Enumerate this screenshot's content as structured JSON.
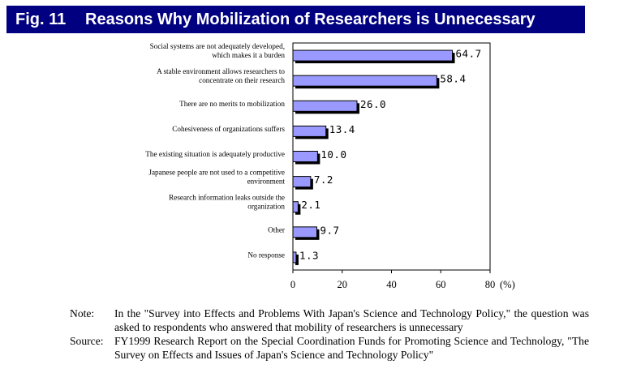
{
  "figure": {
    "number": "Fig. 11",
    "title": "Reasons Why Mobilization of Researchers is Unnecessary"
  },
  "chart_data": {
    "type": "bar",
    "orientation": "horizontal",
    "categories": [
      [
        "Social systems are not adequately developed,",
        "which makes it a burden"
      ],
      [
        "A stable environment allows researchers to",
        "concentrate on their research"
      ],
      [
        "There are no merits to mobilization"
      ],
      [
        "Cohesiveness of organizations suffers"
      ],
      [
        "The existing situation is adequately productive"
      ],
      [
        "Japanese people are not used to a competitive",
        "environment"
      ],
      [
        "Research information leaks outside the",
        "organization"
      ],
      [
        "Other"
      ],
      [
        "No response"
      ]
    ],
    "values": [
      64.7,
      58.4,
      26.0,
      13.4,
      10.0,
      7.2,
      2.1,
      9.7,
      1.3
    ],
    "value_labels": [
      "64.7",
      "58.4",
      "26.0",
      "13.4",
      "10.0",
      "7.2",
      "2.1",
      "9.7",
      "1.3"
    ],
    "xlim": [
      0,
      80
    ],
    "xticks": [
      0,
      20,
      40,
      60,
      80
    ],
    "tick_labels": [
      "0",
      "20",
      "40",
      "60",
      "80"
    ],
    "unit_label": "(%)",
    "grid": false,
    "bar_color": "#9999ff",
    "shadow_color": "#000000"
  },
  "notes": {
    "note_label": "Note:",
    "note_text": "In the \"Survey into Effects and Problems With Japan's Science and Technology Policy,\" the question was asked to respondents who answered that mobility of researchers is unnecessary",
    "source_label": "Source:",
    "source_text": "FY1999 Research Report on the Special Coordination Funds for Promoting Science and Technology, \"The Survey on Effects and Issues of Japan's Science and Technology Policy\""
  }
}
